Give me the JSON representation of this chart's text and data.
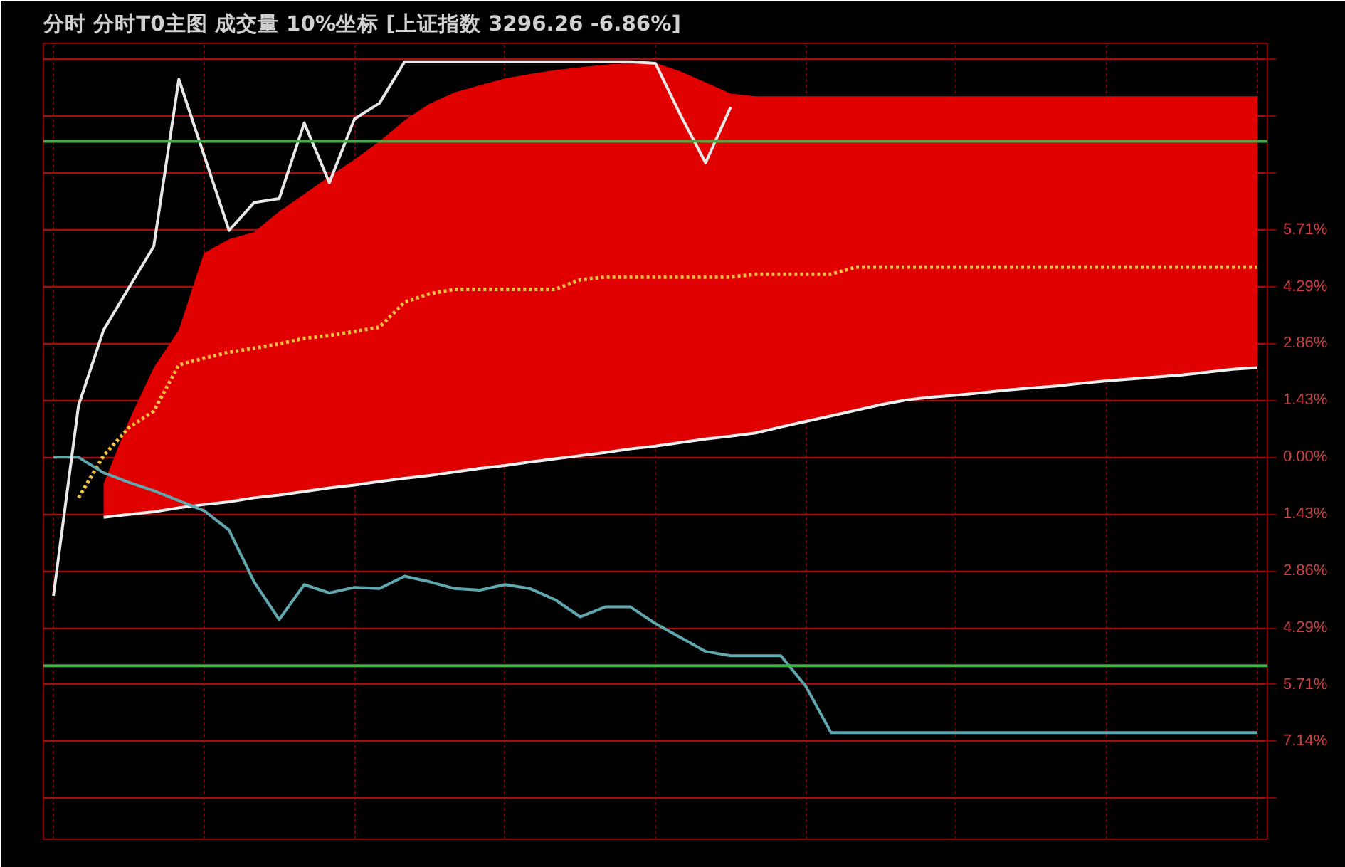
{
  "chart_data": {
    "type": "line",
    "title": "分时  分时T0主图  成交量  10%坐标  [上证指数 3296.26 -6.86%]",
    "categories": [
      null,
      null,
      null,
      null,
      null,
      null,
      null,
      null,
      null,
      null,
      null,
      null,
      null,
      null,
      null,
      null,
      null,
      null,
      null,
      null,
      null,
      null,
      null,
      null,
      null,
      null,
      null,
      null,
      null,
      null,
      null,
      null,
      null,
      null,
      null,
      null,
      null,
      null,
      null,
      null,
      null,
      null,
      null,
      null,
      null,
      null,
      null,
      null,
      null
    ],
    "series": [
      {
        "color": "#f0c040",
        "line_style": "dotted",
        "values": [
          null,
          -1.02,
          0.04,
          0.74,
          1.16,
          2.32,
          2.49,
          2.64,
          2.74,
          2.85,
          2.99,
          3.06,
          3.16,
          3.27,
          3.9,
          4.11,
          4.22,
          4.22,
          4.22,
          4.22,
          4.22,
          4.46,
          4.53,
          4.53,
          4.53,
          4.53,
          4.53,
          4.53,
          4.6,
          4.6,
          4.6,
          4.6,
          4.78,
          4.78,
          4.78,
          4.78,
          4.78,
          4.78,
          4.78,
          4.78,
          4.78,
          4.78,
          4.78,
          4.78,
          4.78,
          4.78,
          4.78,
          4.78,
          4.78
        ],
        "lower": [
          null,
          null,
          -1.51,
          -1.44,
          -1.37,
          -1.27,
          -1.19,
          -1.12,
          -1.02,
          -0.95,
          -0.86,
          -0.77,
          -0.7,
          -0.61,
          -0.53,
          -0.46,
          -0.37,
          -0.28,
          -0.21,
          -0.12,
          -0.04,
          0.04,
          0.12,
          0.21,
          0.28,
          0.37,
          0.46,
          0.53,
          0.61,
          0.76,
          0.9,
          1.04,
          1.18,
          1.32,
          1.44,
          1.51,
          1.56,
          1.62,
          1.69,
          1.74,
          1.79,
          1.86,
          1.92,
          1.97,
          2.02,
          2.07,
          2.14,
          2.21,
          2.25
        ],
        "upper": [
          null,
          null,
          -0.67,
          0.91,
          2.25,
          3.2,
          5.13,
          5.48,
          5.66,
          6.18,
          6.61,
          7.06,
          7.48,
          7.94,
          8.47,
          8.89,
          9.17,
          9.35,
          9.52,
          9.63,
          9.73,
          9.8,
          9.87,
          9.91,
          9.91,
          9.7,
          9.42,
          9.14,
          9.07,
          9.07,
          9.07,
          9.07,
          9.07,
          9.07,
          9.07,
          9.07,
          9.07,
          9.07,
          9.07,
          9.07,
          9.07,
          9.07,
          9.07,
          9.07,
          9.07,
          9.07,
          9.07,
          9.07,
          9.07
        ]
      },
      {
        "color": "#f0f0f0",
        "values": [
          null,
          null,
          -1.51,
          -1.44,
          -1.37,
          -1.27,
          -1.19,
          -1.12,
          -1.02,
          -0.95,
          -0.86,
          -0.77,
          -0.7,
          -0.61,
          -0.53,
          -0.46,
          -0.37,
          -0.28,
          -0.21,
          -0.12,
          -0.04,
          0.04,
          0.12,
          0.21,
          0.28,
          0.37,
          0.46,
          0.53,
          0.61,
          0.76,
          0.9,
          1.04,
          1.18,
          1.32,
          1.44,
          1.51,
          1.56,
          1.62,
          1.69,
          1.74,
          1.79,
          1.86,
          1.92,
          1.97,
          2.02,
          2.07,
          2.14,
          2.21,
          2.25
        ]
      },
      {
        "color": "#5fa8b0",
        "values": [
          0.0,
          0.0,
          -0.39,
          -0.63,
          -0.84,
          -1.09,
          -1.34,
          -1.83,
          -3.13,
          -4.08,
          -3.2,
          -3.41,
          -3.27,
          -3.3,
          -2.99,
          -3.13,
          -3.3,
          -3.34,
          -3.2,
          -3.3,
          -3.58,
          -4.01,
          -3.76,
          -3.76,
          -4.18,
          -4.53,
          -4.88,
          -4.99,
          -4.99,
          -4.99,
          -5.76,
          -6.92,
          -6.92,
          -6.92,
          -6.92,
          -6.92,
          -6.92,
          -6.92,
          -6.92,
          -6.92,
          -6.92,
          -6.92,
          -6.92,
          -6.92,
          -6.92,
          -6.92,
          -6.92,
          -6.92,
          -6.92
        ]
      },
      {
        "color": "#e8e8e8",
        "values": [
          -3.48,
          1.3,
          3.2,
          4.25,
          5.3,
          9.5,
          7.6,
          5.7,
          6.4,
          6.5,
          8.4,
          6.9,
          8.5,
          8.9,
          9.94,
          9.94,
          9.94,
          9.94,
          9.94,
          9.94,
          9.94,
          9.94,
          9.94,
          9.94,
          9.9,
          8.6,
          7.4,
          8.8,
          null,
          null,
          null,
          null,
          null,
          null,
          null,
          null,
          null,
          null,
          null,
          null,
          null,
          null,
          null,
          null,
          null,
          null,
          null,
          null,
          null
        ]
      }
    ],
    "ylim": [
      -9.6,
      10.4
    ],
    "yticks": [
      {
        "value": 10,
        "label": null
      },
      {
        "value": 8.57,
        "label": null
      },
      {
        "value": 7.14,
        "label": null
      },
      {
        "value": 5.71,
        "label": "5.71%"
      },
      {
        "value": 4.29,
        "label": "4.29%"
      },
      {
        "value": 2.86,
        "label": "2.86%"
      },
      {
        "value": 1.43,
        "label": "1.43%"
      },
      {
        "value": 0,
        "label": "0.00%"
      },
      {
        "value": -1.43,
        "label": "1.43%"
      },
      {
        "value": -2.86,
        "label": "2.86%"
      },
      {
        "value": -4.29,
        "label": "4.29%"
      },
      {
        "value": -5.71,
        "label": "5.71%"
      },
      {
        "value": -7.14,
        "label": "7.14%"
      },
      {
        "value": -8.57,
        "label": null
      }
    ],
    "ref_lines": [
      {
        "axis": "y",
        "value": 7.94,
        "label": null,
        "color": "#3cb043"
      },
      {
        "axis": "y",
        "value": -5.24,
        "label": null,
        "color": "#3cb043"
      }
    ],
    "grid": true
  }
}
